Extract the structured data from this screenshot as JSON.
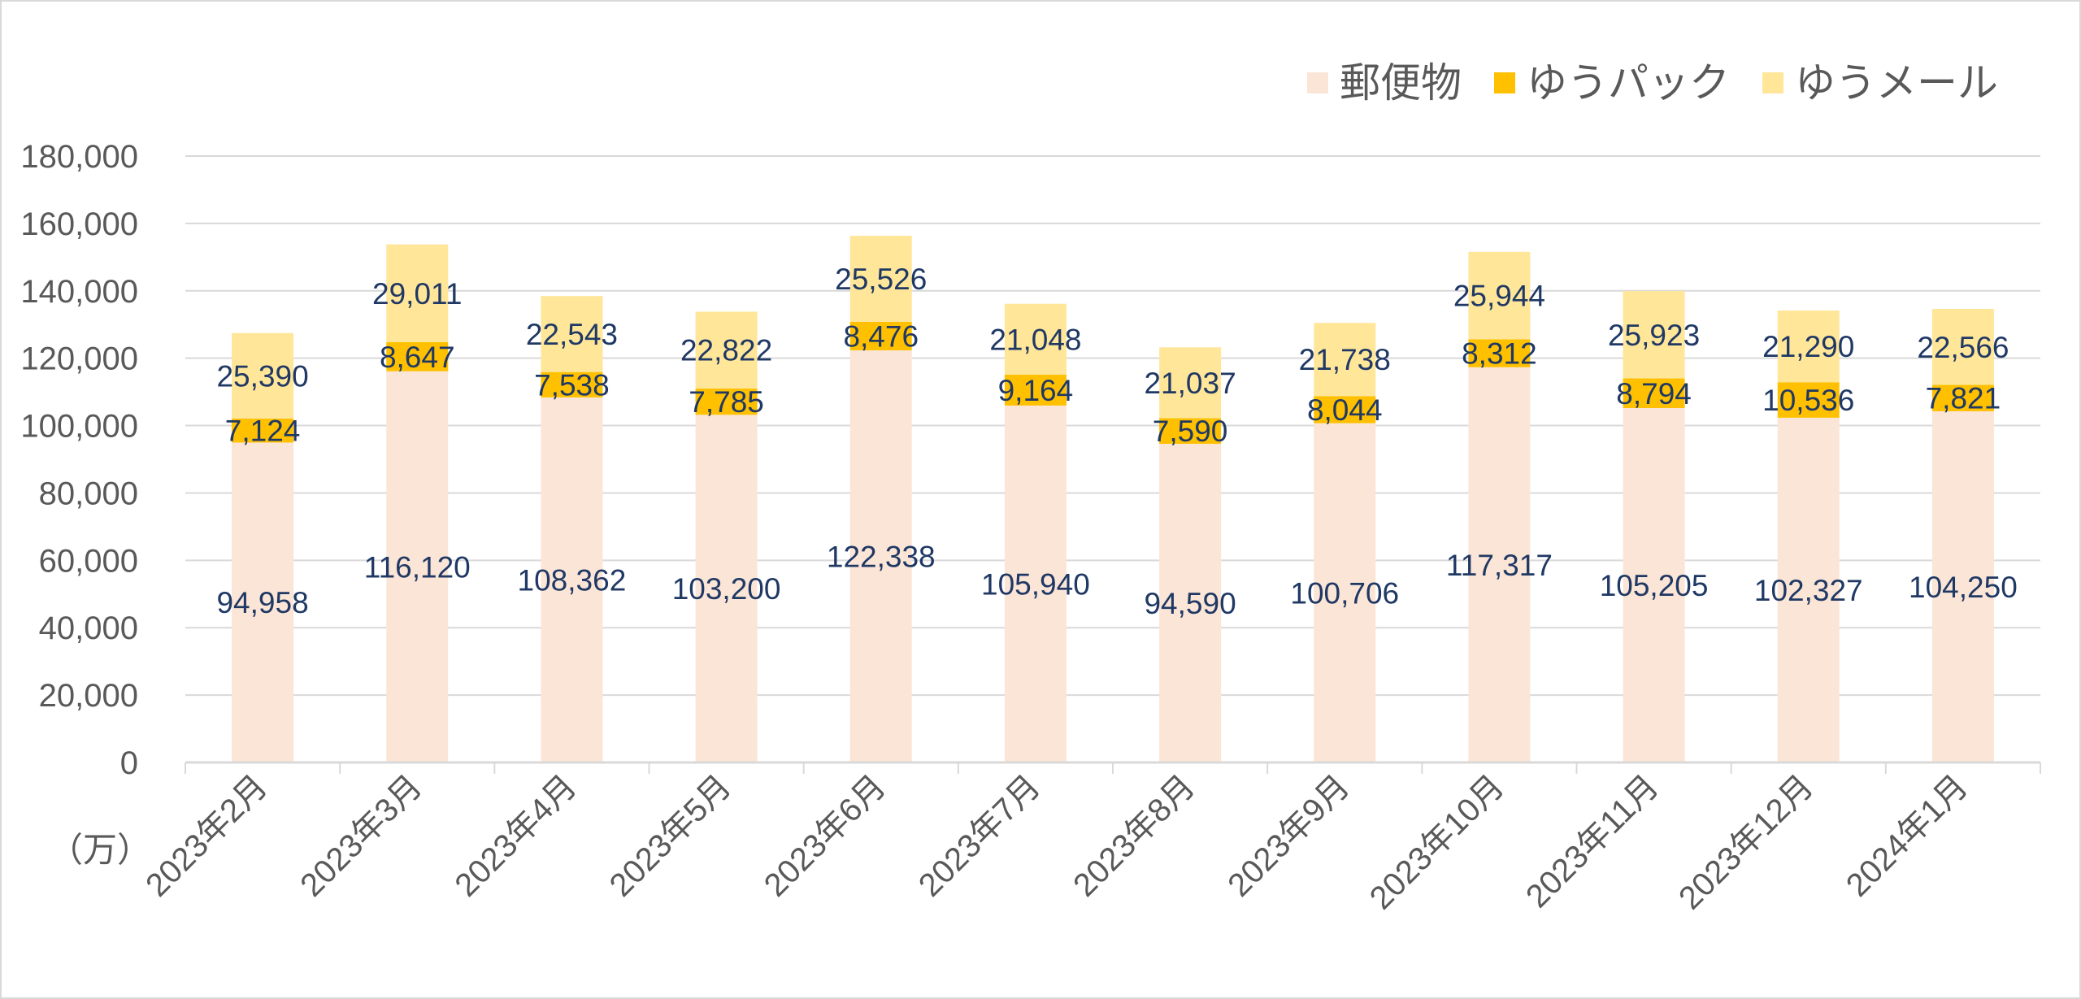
{
  "chart_data": {
    "type": "bar",
    "stacked": true,
    "unit_label": "（万）",
    "categories": [
      "2023年2月",
      "2023年3月",
      "2023年4月",
      "2023年5月",
      "2023年6月",
      "2023年7月",
      "2023年8月",
      "2023年9月",
      "2023年10月",
      "2023年11月",
      "2023年12月",
      "2024年1月"
    ],
    "series": [
      {
        "name": "郵便物",
        "color": "#fbe5d6",
        "values": [
          94958,
          116120,
          108362,
          103200,
          122338,
          105940,
          94590,
          100706,
          117317,
          105205,
          102327,
          104250
        ]
      },
      {
        "name": "ゆうパック",
        "color": "#ffc000",
        "values": [
          7124,
          8647,
          7538,
          7785,
          8476,
          9164,
          7590,
          8044,
          8312,
          8794,
          10536,
          7821
        ]
      },
      {
        "name": "ゆうメール",
        "color": "#ffe699",
        "values": [
          25390,
          29011,
          22543,
          22822,
          25526,
          21048,
          21037,
          21738,
          25944,
          25923,
          21290,
          22566
        ]
      }
    ],
    "ylim": [
      0,
      180000
    ],
    "yticks": [
      "0",
      "20,000",
      "40,000",
      "60,000",
      "80,000",
      "100,000",
      "120,000",
      "140,000",
      "160,000",
      "180,000"
    ],
    "grid": true,
    "legend_position": "top-right",
    "label_color": "#1f3864",
    "axis_text_color": "#595959",
    "grid_color": "#d9d9d9"
  }
}
